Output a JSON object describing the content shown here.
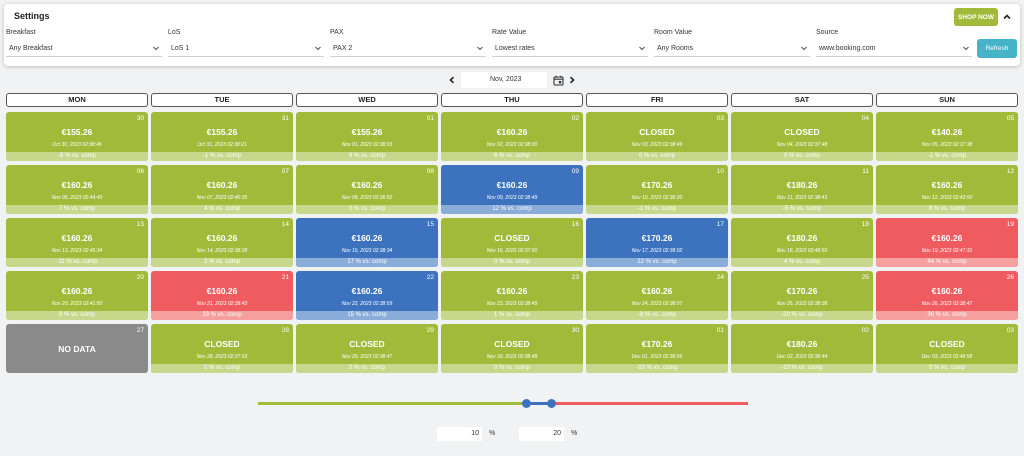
{
  "settings": {
    "title": "Settings",
    "shop_now": "SHOP NOW",
    "refresh": "Refresh",
    "filters": [
      {
        "key": "breakfast",
        "label": "Breakfast",
        "value": "Any Breakfast"
      },
      {
        "key": "los",
        "label": "LoS",
        "value": "LoS 1"
      },
      {
        "key": "pax",
        "label": "PAX",
        "value": "PAX 2"
      },
      {
        "key": "rate",
        "label": "Rate Value",
        "value": "Lowest rates"
      },
      {
        "key": "room",
        "label": "Room Value",
        "value": "Any Rooms"
      },
      {
        "key": "source",
        "label": "Source",
        "value": "www.booking.com"
      }
    ]
  },
  "month_nav": {
    "value": "Nov, 2023"
  },
  "weekdays": [
    "MON",
    "TUE",
    "WED",
    "THU",
    "FRI",
    "SAT",
    "SUN"
  ],
  "calendar": [
    [
      {
        "day": "30",
        "price": "€155.26",
        "ts": "Oct 30, 2023 02:38:46",
        "cmp": "-8 % vs. comp",
        "status": "green"
      },
      {
        "day": "31",
        "price": "€155.26",
        "ts": "Oct 31, 2023 02:38:21",
        "cmp": "-1 % vs. comp",
        "status": "green"
      },
      {
        "day": "01",
        "price": "€155.26",
        "ts": "Nov 01, 2023 02:38:03",
        "cmp": "6 % vs. comp",
        "status": "green"
      },
      {
        "day": "02",
        "price": "€160.26",
        "ts": "Nov 02, 2023 02:38:00",
        "cmp": "6 % vs. comp",
        "status": "green"
      },
      {
        "day": "03",
        "price": "CLOSED",
        "ts": "Nov 03, 2023 02:38:49",
        "cmp": "0 % vs. comp",
        "status": "green"
      },
      {
        "day": "04",
        "price": "CLOSED",
        "ts": "Nov 04, 2023 02:37:48",
        "cmp": "0 % vs. comp",
        "status": "green"
      },
      {
        "day": "05",
        "price": "€140.26",
        "ts": "Nov 05, 2023 02:37:38",
        "cmp": "-1 % vs. comp",
        "status": "green"
      }
    ],
    [
      {
        "day": "06",
        "price": "€160.26",
        "ts": "Nov 06, 2023 02:44:49",
        "cmp": "7 % vs. comp",
        "status": "green"
      },
      {
        "day": "07",
        "price": "€160.26",
        "ts": "Nov 07, 2023 02:40:35",
        "cmp": "4 % vs. comp",
        "status": "green"
      },
      {
        "day": "08",
        "price": "€160.26",
        "ts": "Nov 08, 2023 02:36:52",
        "cmp": "0 % vs. comp",
        "status": "green"
      },
      {
        "day": "09",
        "price": "€160.26",
        "ts": "Nov 09, 2023 02:38:49",
        "cmp": "12 % vs. comp",
        "status": "blue"
      },
      {
        "day": "10",
        "price": "€170.26",
        "ts": "Nov 10, 2023 02:38:20",
        "cmp": "-1 % vs. comp",
        "status": "green"
      },
      {
        "day": "11",
        "price": "€180.26",
        "ts": "Nov 11, 2023 02:38:43",
        "cmp": "-5 % vs. comp",
        "status": "green"
      },
      {
        "day": "12",
        "price": "€160.26",
        "ts": "Nov 12, 2023 02:43:50",
        "cmp": "8 % vs. comp",
        "status": "green"
      }
    ],
    [
      {
        "day": "13",
        "price": "€160.26",
        "ts": "Nov 13, 2023 02:45:34",
        "cmp": "-11 % vs. comp",
        "status": "green"
      },
      {
        "day": "14",
        "price": "€160.26",
        "ts": "Nov 14, 2023 02:38:28",
        "cmp": "3 % vs. comp",
        "status": "green"
      },
      {
        "day": "15",
        "price": "€160.26",
        "ts": "Nov 15, 2023 02:38:34",
        "cmp": "17 % vs. comp",
        "status": "blue"
      },
      {
        "day": "16",
        "price": "CLOSED",
        "ts": "Nov 16, 2023 02:37:50",
        "cmp": "0 % vs. comp",
        "status": "green"
      },
      {
        "day": "17",
        "price": "€170.26",
        "ts": "Nov 17, 2023 02:38:02",
        "cmp": "12 % vs. comp",
        "status": "blue"
      },
      {
        "day": "18",
        "price": "€180.26",
        "ts": "Nov 18, 2023 02:48:50",
        "cmp": "4 % vs. comp",
        "status": "green"
      },
      {
        "day": "19",
        "price": "€160.26",
        "ts": "Nov 19, 2023 02:47:31",
        "cmp": "44 % vs. comp",
        "status": "red"
      }
    ],
    [
      {
        "day": "20",
        "price": "€160.26",
        "ts": "Nov 20, 2023 02:41:50",
        "cmp": "9 % vs. comp",
        "status": "green"
      },
      {
        "day": "21",
        "price": "€160.26",
        "ts": "Nov 21, 2023 02:38:43",
        "cmp": "23 % vs. comp",
        "status": "red"
      },
      {
        "day": "22",
        "price": "€160.26",
        "ts": "Nov 22, 2023 02:38:59",
        "cmp": "15 % vs. comp",
        "status": "blue"
      },
      {
        "day": "23",
        "price": "€160.26",
        "ts": "Nov 23, 2023 02:38:49",
        "cmp": "1 % vs. comp",
        "status": "green"
      },
      {
        "day": "24",
        "price": "€160.26",
        "ts": "Nov 24, 2023 02:38:07",
        "cmp": "-8 % vs. comp",
        "status": "green"
      },
      {
        "day": "25",
        "price": "€170.26",
        "ts": "Nov 25, 2023 02:38:38",
        "cmp": "-20 % vs. comp",
        "status": "green"
      },
      {
        "day": "26",
        "price": "€160.26",
        "ts": "Nov 26, 2023 02:38:47",
        "cmp": "36 % vs. comp",
        "status": "red"
      }
    ],
    [
      {
        "day": "27",
        "price": "NO DATA",
        "ts": "",
        "cmp": "",
        "status": "gray"
      },
      {
        "day": "28",
        "price": "CLOSED",
        "ts": "Nov 28, 2023 02:37:53",
        "cmp": "0 % vs. comp",
        "status": "green"
      },
      {
        "day": "29",
        "price": "CLOSED",
        "ts": "Nov 29, 2023 02:38:47",
        "cmp": "0 % vs. comp",
        "status": "green"
      },
      {
        "day": "30",
        "price": "CLOSED",
        "ts": "Nov 30, 2023 02:38:48",
        "cmp": "0 % vs. comp",
        "status": "green"
      },
      {
        "day": "01",
        "price": "€170.26",
        "ts": "Dec 01, 2023 02:38:05",
        "cmp": "-10 % vs. comp",
        "status": "green"
      },
      {
        "day": "02",
        "price": "€180.26",
        "ts": "Dec 02, 2023 02:38:44",
        "cmp": "-13 % vs. comp",
        "status": "green"
      },
      {
        "day": "03",
        "price": "CLOSED",
        "ts": "Dec 03, 2023 02:48:58",
        "cmp": "0 % vs. comp",
        "status": "green"
      }
    ]
  ],
  "range_slider": {
    "low": 10,
    "high": 20,
    "low_unit": "%",
    "high_unit": "%"
  },
  "colors": {
    "green": "#a2ba3a",
    "blue": "#3c72be",
    "red": "#ef5b5e",
    "gray": "#8a8a8a",
    "refresh": "#46b3c9"
  }
}
